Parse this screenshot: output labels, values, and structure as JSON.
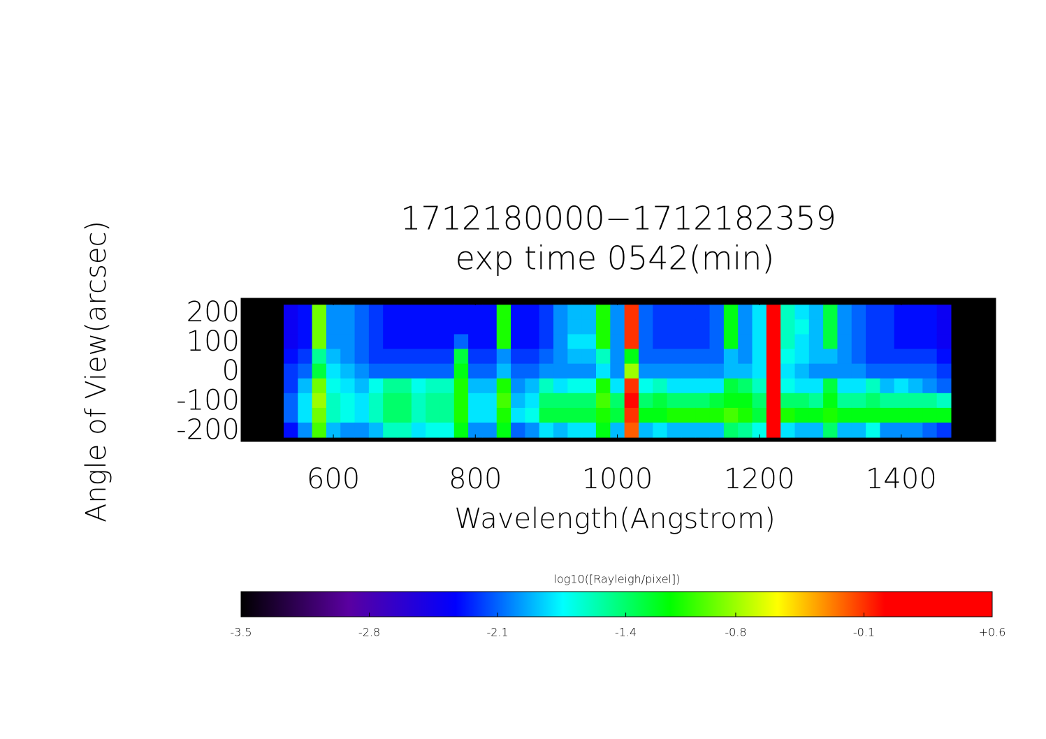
{
  "chart_data": {
    "type": "heatmap",
    "title": "1712180000−1712182359",
    "subtitle": "exp time 0542(min)",
    "x_label": "Wavelength(Angstrom)",
    "y_label": "Angle of View(arcsec)",
    "colorbar_label": "log10([Rayleigh/pixel])",
    "x": [
      540,
      560,
      580,
      600,
      620,
      640,
      660,
      680,
      700,
      720,
      740,
      760,
      780,
      800,
      820,
      840,
      860,
      880,
      900,
      920,
      940,
      960,
      980,
      1000,
      1020,
      1040,
      1060,
      1080,
      1100,
      1120,
      1140,
      1160,
      1180,
      1200,
      1220,
      1240,
      1260,
      1280,
      1300,
      1320,
      1340,
      1360,
      1380,
      1400,
      1420,
      1440,
      1460
    ],
    "y": [
      200,
      150,
      100,
      50,
      0,
      -50,
      -100,
      -150,
      -200
    ],
    "z": [
      [
        -2.4,
        -2.3,
        -0.9,
        -2.0,
        -2.0,
        -2.1,
        -2.2,
        -2.3,
        -2.3,
        -2.3,
        -2.3,
        -2.3,
        -2.3,
        -2.3,
        -2.3,
        -1.1,
        -2.3,
        -2.3,
        -2.2,
        -2.0,
        -1.9,
        -1.9,
        -1.1,
        -2.0,
        -0.1,
        -2.1,
        -2.2,
        -2.2,
        -2.2,
        -2.2,
        -2.1,
        -1.2,
        -2.0,
        -1.8,
        0.5,
        -1.6,
        -1.8,
        -1.9,
        -1.3,
        -2.0,
        -2.1,
        -2.2,
        -2.2,
        -2.3,
        -2.3,
        -2.3,
        -2.4
      ],
      [
        -2.4,
        -2.3,
        -0.9,
        -2.0,
        -2.0,
        -2.1,
        -2.2,
        -2.3,
        -2.3,
        -2.3,
        -2.3,
        -2.3,
        -2.3,
        -2.3,
        -2.3,
        -1.1,
        -2.3,
        -2.3,
        -2.2,
        -2.0,
        -1.9,
        -1.9,
        -1.1,
        -2.0,
        -0.1,
        -2.1,
        -2.2,
        -2.2,
        -2.2,
        -2.2,
        -2.1,
        -1.2,
        -2.0,
        -1.8,
        0.3,
        -1.6,
        -1.7,
        -1.9,
        -1.3,
        -2.0,
        -2.1,
        -2.2,
        -2.2,
        -2.3,
        -2.3,
        -2.3,
        -2.4
      ],
      [
        -2.4,
        -2.3,
        -0.9,
        -2.0,
        -2.0,
        -2.1,
        -2.2,
        -2.3,
        -2.3,
        -2.3,
        -2.3,
        -2.3,
        -2.1,
        -2.3,
        -2.3,
        -1.1,
        -2.3,
        -2.3,
        -2.2,
        -2.0,
        -1.8,
        -1.8,
        -1.1,
        -2.0,
        -0.1,
        -2.1,
        -2.2,
        -2.2,
        -2.2,
        -2.2,
        -2.1,
        -1.2,
        -2.0,
        -1.8,
        0.2,
        -1.6,
        -1.8,
        -1.9,
        -1.3,
        -2.0,
        -2.1,
        -2.2,
        -2.2,
        -2.3,
        -2.3,
        -2.3,
        -2.4
      ],
      [
        -2.3,
        -2.2,
        -1.5,
        -1.9,
        -2.0,
        -2.1,
        -2.2,
        -2.2,
        -2.2,
        -2.2,
        -2.2,
        -2.2,
        -1.3,
        -2.2,
        -2.2,
        -2.0,
        -2.2,
        -2.2,
        -2.1,
        -2.0,
        -1.9,
        -1.9,
        -1.6,
        -2.0,
        -1.2,
        -2.1,
        -2.1,
        -2.1,
        -2.1,
        -2.1,
        -2.1,
        -1.9,
        -2.0,
        -1.8,
        0.2,
        -1.7,
        -1.8,
        -1.9,
        -1.9,
        -2.0,
        -2.1,
        -2.2,
        -2.2,
        -2.2,
        -2.2,
        -2.2,
        -2.3
      ],
      [
        -2.2,
        -2.1,
        -1.3,
        -1.8,
        -1.9,
        -2.0,
        -2.1,
        -2.1,
        -2.1,
        -2.1,
        -2.1,
        -2.1,
        -1.2,
        -2.1,
        -2.1,
        -1.9,
        -2.1,
        -2.1,
        -2.0,
        -2.0,
        -2.0,
        -2.0,
        -1.8,
        -2.0,
        -0.8,
        -2.0,
        -2.0,
        -2.0,
        -2.0,
        -2.0,
        -2.0,
        -1.9,
        -1.9,
        -1.8,
        0.3,
        -1.8,
        -1.9,
        -2.0,
        -2.0,
        -2.0,
        -2.0,
        -2.1,
        -2.1,
        -2.1,
        -2.1,
        -2.1,
        -2.2
      ],
      [
        -2.2,
        -1.9,
        -0.9,
        -1.7,
        -1.8,
        -1.9,
        -1.7,
        -1.5,
        -1.5,
        -1.7,
        -1.6,
        -1.6,
        -1.1,
        -1.9,
        -1.9,
        -1.1,
        -2.0,
        -1.9,
        -1.6,
        -1.8,
        -1.7,
        -1.7,
        -1.1,
        -1.8,
        -0.1,
        -1.7,
        -1.6,
        -1.8,
        -1.8,
        -1.8,
        -1.8,
        -1.3,
        -1.4,
        -1.6,
        0.5,
        -1.7,
        -1.8,
        -1.8,
        -1.3,
        -1.8,
        -1.8,
        -1.6,
        -1.9,
        -1.8,
        -1.9,
        -2.0,
        -2.1
      ],
      [
        -2.1,
        -1.8,
        -0.8,
        -1.6,
        -1.7,
        -1.8,
        -1.6,
        -1.4,
        -1.4,
        -1.6,
        -1.5,
        -1.5,
        -1.1,
        -1.8,
        -1.8,
        -1.0,
        -1.9,
        -1.8,
        -1.4,
        -1.4,
        -1.4,
        -1.4,
        -1.0,
        -1.4,
        0.0,
        -1.4,
        -1.3,
        -1.4,
        -1.4,
        -1.4,
        -1.3,
        -1.2,
        -1.2,
        -1.4,
        0.5,
        -1.4,
        -1.4,
        -1.5,
        -1.2,
        -1.5,
        -1.5,
        -1.4,
        -1.5,
        -1.5,
        -1.5,
        -1.5,
        -1.6
      ],
      [
        -2.1,
        -1.8,
        -0.9,
        -1.6,
        -1.7,
        -1.8,
        -1.6,
        -1.4,
        -1.4,
        -1.6,
        -1.5,
        -1.5,
        -1.1,
        -1.8,
        -1.8,
        -1.1,
        -1.8,
        -1.7,
        -1.3,
        -1.3,
        -1.3,
        -1.3,
        -1.1,
        -1.3,
        -0.1,
        -1.2,
        -1.2,
        -1.1,
        -1.1,
        -1.1,
        -1.1,
        -1.0,
        -1.1,
        -1.3,
        0.5,
        -1.1,
        -1.2,
        -1.2,
        -1.1,
        -1.2,
        -1.2,
        -1.2,
        -1.2,
        -1.2,
        -1.2,
        -1.2,
        -1.2
      ],
      [
        -2.3,
        -2.0,
        -1.0,
        -1.9,
        -2.0,
        -2.0,
        -1.9,
        -1.6,
        -1.6,
        -1.8,
        -1.7,
        -1.7,
        -1.2,
        -2.0,
        -2.0,
        -1.2,
        -2.1,
        -2.0,
        -1.8,
        -1.9,
        -1.8,
        -1.8,
        -1.2,
        -1.9,
        -0.2,
        -1.9,
        -1.8,
        -1.9,
        -1.9,
        -1.9,
        -1.9,
        -1.4,
        -1.5,
        -1.7,
        0.3,
        -1.8,
        -1.9,
        -1.9,
        -1.4,
        -1.9,
        -1.9,
        -1.7,
        -2.0,
        -2.0,
        -2.0,
        -2.1,
        -2.2
      ]
    ],
    "xlim": [
      470,
      1533
    ],
    "ylim": [
      -239,
      247
    ],
    "xticks": [
      600,
      800,
      1000,
      1200,
      1400
    ],
    "yticks": [
      200,
      100,
      0,
      -100,
      -200
    ],
    "zlim": [
      -3.5,
      0.6
    ],
    "zticks": [
      -3.5,
      -2.8,
      -2.1,
      -1.4,
      -0.8,
      -0.1,
      {
        "value": 0.6,
        "label": "+0.6"
      }
    ],
    "colorscale": [
      "#000000",
      "#5a00a0",
      "#0000ff",
      "#00ffff",
      "#00ff00",
      "#ffff00",
      "#ff0000",
      "#ff0000"
    ]
  }
}
